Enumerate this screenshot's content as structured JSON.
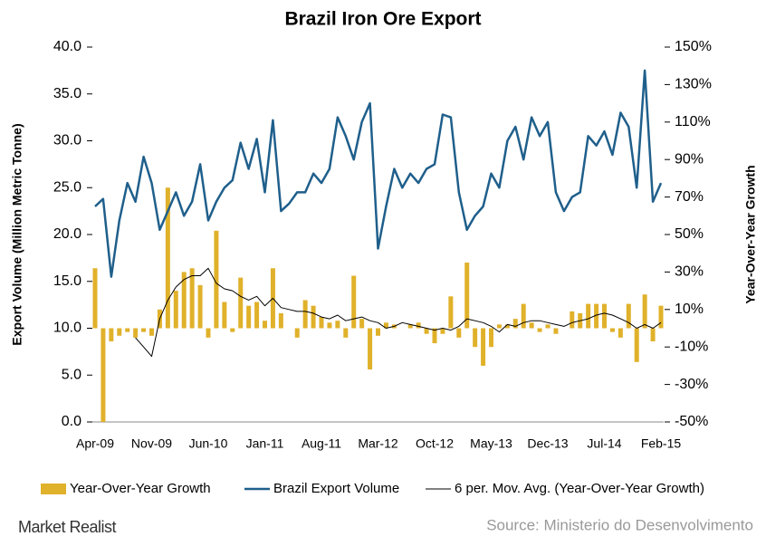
{
  "chart_data": {
    "type": "bar-line",
    "title": "Brazil Iron Ore Export",
    "ylabel": "Export Volume (Million Metric Tonne)",
    "y2label": "Year-Over-Year Growth",
    "source": "Source: Ministerio do Desenvolvimento",
    "brand": "Market Realist",
    "categories": [
      "Apr-09",
      null,
      null,
      null,
      null,
      null,
      null,
      "Nov-09",
      null,
      null,
      null,
      null,
      null,
      null,
      "Jun-10",
      null,
      null,
      null,
      null,
      null,
      null,
      "Jan-11",
      null,
      null,
      null,
      null,
      null,
      null,
      "Aug-11",
      null,
      null,
      null,
      null,
      null,
      null,
      "Mar-12",
      null,
      null,
      null,
      null,
      null,
      null,
      "Oct-12",
      null,
      null,
      null,
      null,
      null,
      null,
      "May-13",
      null,
      null,
      null,
      null,
      null,
      null,
      "Dec-13",
      null,
      null,
      null,
      null,
      null,
      null,
      "Jul-14",
      null,
      null,
      null,
      null,
      null,
      null,
      "Feb-15"
    ],
    "ylim": [
      0,
      40
    ],
    "yticks": [
      {
        "value": 0,
        "label": "0.0"
      },
      {
        "value": 5,
        "label": "5.0"
      },
      {
        "value": 10,
        "label": "10.0"
      },
      {
        "value": 15,
        "label": "15.0"
      },
      {
        "value": 20,
        "label": "20.0"
      },
      {
        "value": 25,
        "label": "25.0"
      },
      {
        "value": 30,
        "label": "30.0"
      },
      {
        "value": 35,
        "label": "35.0"
      },
      {
        "value": 40,
        "label": "40.0"
      }
    ],
    "y2lim": [
      -50,
      150
    ],
    "y2ticks": [
      {
        "value": -50,
        "label": "-50%"
      },
      {
        "value": -30,
        "label": "-30%"
      },
      {
        "value": -10,
        "label": "-10%"
      },
      {
        "value": 10,
        "label": "10%"
      },
      {
        "value": 30,
        "label": "30%"
      },
      {
        "value": 50,
        "label": "50%"
      },
      {
        "value": 70,
        "label": "70%"
      },
      {
        "value": 90,
        "label": "90%"
      },
      {
        "value": 110,
        "label": "110%"
      },
      {
        "value": 130,
        "label": "130%"
      },
      {
        "value": 150,
        "label": "150%"
      }
    ],
    "series": [
      {
        "name": "Year-Over-Year Growth",
        "type": "bar",
        "axis": "y2",
        "color": "#e0b12a",
        "values": [
          32,
          -50,
          -7,
          -4,
          -2,
          -5,
          -2,
          -4,
          10,
          75,
          20,
          30,
          32,
          23,
          -5,
          52,
          14,
          -2,
          27,
          12,
          14,
          4,
          32,
          8,
          0,
          -5,
          15,
          12,
          6,
          3,
          4,
          -5,
          28,
          5,
          -22,
          -4,
          3,
          2,
          0,
          2,
          3,
          -3,
          -8,
          -3,
          17,
          -5,
          35,
          -10,
          -20,
          -10,
          2,
          2,
          5,
          13,
          3,
          -2,
          2,
          -3,
          0,
          9,
          8,
          13,
          13,
          13,
          -2,
          -5,
          13,
          -18,
          18,
          -7,
          12
        ]
      },
      {
        "name": "Brazil Export Volume",
        "type": "line",
        "color": "#1f5f8b",
        "values": [
          23.0,
          23.8,
          15.5,
          21.5,
          25.5,
          23.5,
          28.3,
          25.5,
          20.5,
          22.5,
          24.5,
          22.0,
          23.5,
          27.5,
          21.5,
          23.5,
          25.0,
          25.8,
          29.8,
          27.0,
          30.2,
          24.5,
          32.2,
          22.5,
          23.3,
          24.5,
          24.5,
          26.5,
          25.5,
          27.0,
          32.5,
          30.5,
          28.0,
          32.0,
          34.0,
          18.5,
          23.0,
          27.0,
          25.0,
          26.5,
          25.5,
          27.0,
          27.5,
          32.8,
          32.5,
          24.5,
          20.5,
          22.0,
          23.0,
          26.5,
          25.0,
          30.0,
          31.5,
          28.0,
          32.5,
          30.5,
          32.0,
          24.5,
          22.5,
          24.0,
          24.5,
          30.5,
          29.5,
          31.0,
          28.5,
          33.0,
          31.5,
          25.0,
          37.5,
          23.5,
          25.5
        ]
      },
      {
        "name": "6 per. Mov. Avg. (Year-Over-Year Growth)",
        "type": "line",
        "axis": "y2",
        "color": "#000000",
        "values": [
          null,
          null,
          null,
          null,
          null,
          -5,
          -10,
          -15,
          5,
          15,
          22,
          26,
          28,
          28,
          32,
          24,
          21,
          20,
          17,
          15,
          17,
          12,
          16,
          11,
          10,
          9,
          9,
          8,
          6,
          5,
          7,
          4,
          5,
          6,
          4,
          3,
          0,
          1,
          3,
          2,
          1,
          0,
          -1,
          0,
          -1,
          1,
          5,
          4,
          3,
          1,
          -2,
          2,
          1,
          3,
          4,
          4,
          3,
          2,
          1,
          3,
          4,
          5,
          7,
          8,
          7,
          5,
          3,
          0,
          2,
          0,
          3
        ]
      }
    ]
  }
}
